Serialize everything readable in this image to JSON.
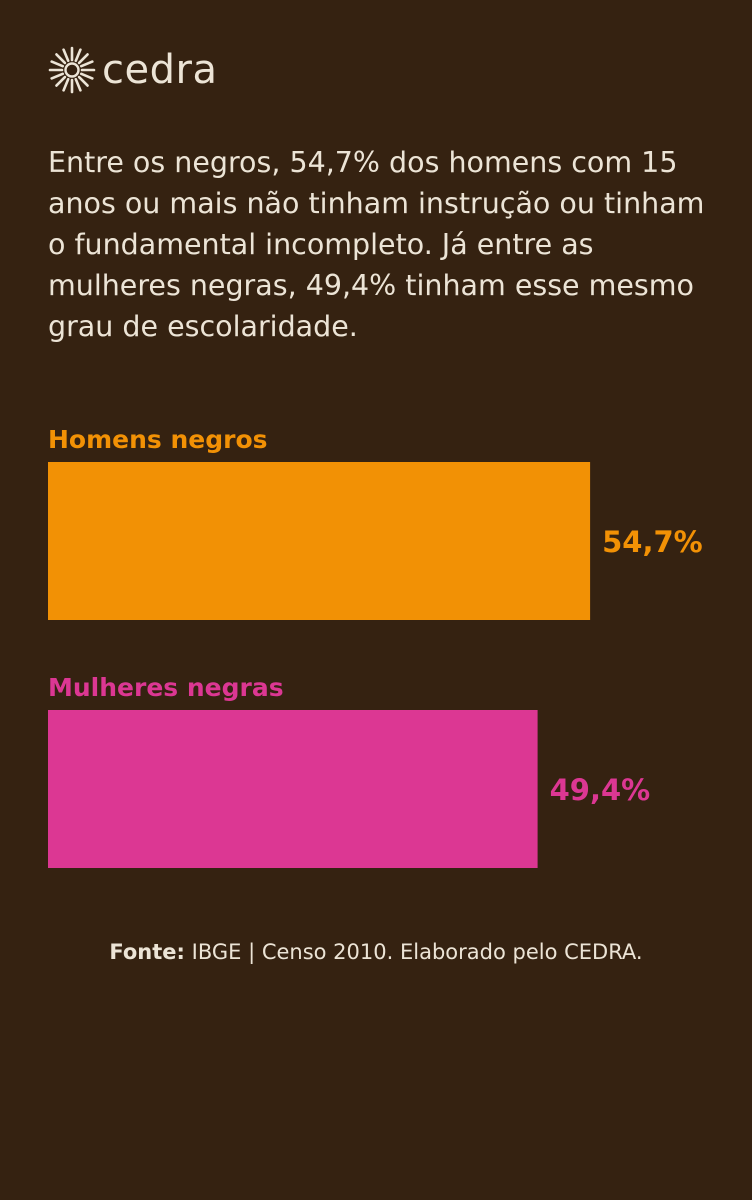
{
  "brand": {
    "name": "cedra",
    "icon": "sun-burst-icon",
    "color": "#ece4d6"
  },
  "headline": "Entre os negros, 54,7% dos homens com 15 anos ou mais não tinham instrução ou tinham o fundamental incompleto. Já entre as mulheres negras, 49,4% tinham esse mesmo grau de escolaridade.",
  "chart_data": {
    "type": "bar",
    "orientation": "horizontal",
    "categories": [
      "Homens negros",
      "Mulheres negras"
    ],
    "values": [
      54.7,
      49.4
    ],
    "value_labels": [
      "54,7%",
      "49,4%"
    ],
    "colors": [
      "#f29105",
      "#dc3793"
    ],
    "title": "",
    "xlabel": "",
    "ylabel": "",
    "xlim": [
      0,
      55.9
    ],
    "grid": false,
    "legend": "none"
  },
  "source": {
    "label": "Fonte:",
    "text": " IBGE | Censo 2010. Elaborado pelo CEDRA."
  },
  "colors": {
    "background": "#352211",
    "text": "#ece4d6"
  }
}
